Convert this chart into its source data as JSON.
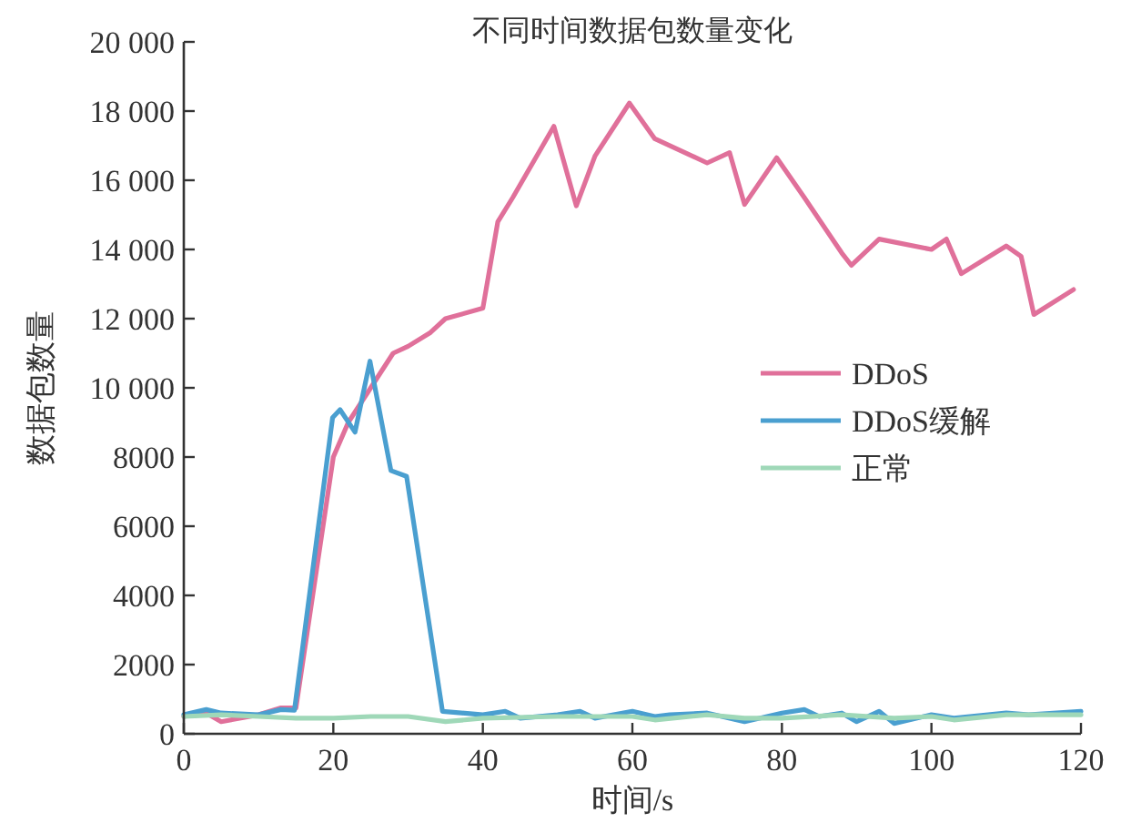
{
  "chart_data": {
    "type": "line",
    "title": "不同时间数据包数量变化",
    "xlabel": "时间/s",
    "ylabel": "数据包数量",
    "xlim": [
      0,
      120
    ],
    "xticks": [
      0,
      20,
      40,
      60,
      80,
      100,
      120
    ],
    "ylim": [
      0,
      20000
    ],
    "yticks": [
      0,
      2000,
      4000,
      6000,
      8000,
      {
        "value": 10000,
        "label": "10 000"
      },
      {
        "value": 12000,
        "label": "12 000"
      },
      {
        "value": 14000,
        "label": "14 000"
      },
      {
        "value": 16000,
        "label": "16 000"
      },
      {
        "value": 18000,
        "label": "18 000"
      },
      {
        "value": 20000,
        "label": "20 000"
      }
    ],
    "grid": false,
    "legend": "right",
    "marker": "none",
    "line_style": "solid",
    "series": [
      {
        "name": "DDoS",
        "color": "#e0709a",
        "x": [
          0,
          3,
          5,
          10,
          13,
          15,
          20,
          22,
          25,
          28,
          30,
          33,
          35,
          40,
          42,
          44,
          49.5,
          52.5,
          55,
          59.6,
          63,
          70,
          73,
          75,
          79.3,
          83,
          88,
          89.3,
          93,
          100,
          102,
          104,
          110,
          112,
          113.7,
          119
        ],
        "values": [
          500,
          600,
          350,
          550,
          750,
          750,
          8000,
          9000,
          10000,
          11000,
          11200,
          11600,
          12000,
          12300,
          14800,
          15500,
          17560,
          15260,
          16700,
          18230,
          17200,
          16500,
          16800,
          15300,
          16650,
          15500,
          13900,
          13540,
          14300,
          14000,
          14300,
          13300,
          14100,
          13800,
          12120,
          12840
        ]
      },
      {
        "name": "DDoS缓解",
        "color": "#4a9fd0",
        "x": [
          0,
          3,
          5,
          10,
          13,
          14.8,
          19.9,
          20.9,
          22.9,
          24.9,
          27.7,
          29.8,
          34.6,
          40,
          43,
          45,
          50,
          53,
          55,
          60,
          63,
          65,
          70,
          75,
          80,
          83,
          85,
          88,
          90,
          93,
          95,
          100,
          103,
          110,
          113,
          120
        ],
        "values": [
          550,
          700,
          600,
          550,
          700,
          680,
          9140,
          9370,
          8720,
          10770,
          7610,
          7440,
          650,
          550,
          650,
          450,
          550,
          650,
          450,
          650,
          500,
          550,
          600,
          350,
          600,
          700,
          500,
          600,
          350,
          650,
          300,
          550,
          450,
          600,
          550,
          650
        ]
      },
      {
        "name": "正常",
        "color": "#9fd8b8",
        "x": [
          0,
          5,
          10,
          15,
          20,
          25,
          30,
          35,
          40,
          50,
          60,
          63,
          70,
          75,
          80,
          88,
          95,
          100,
          103,
          110,
          120
        ],
        "values": [
          500,
          550,
          500,
          450,
          450,
          500,
          500,
          350,
          450,
          500,
          500,
          400,
          550,
          450,
          450,
          550,
          450,
          500,
          400,
          550,
          550
        ]
      }
    ]
  }
}
